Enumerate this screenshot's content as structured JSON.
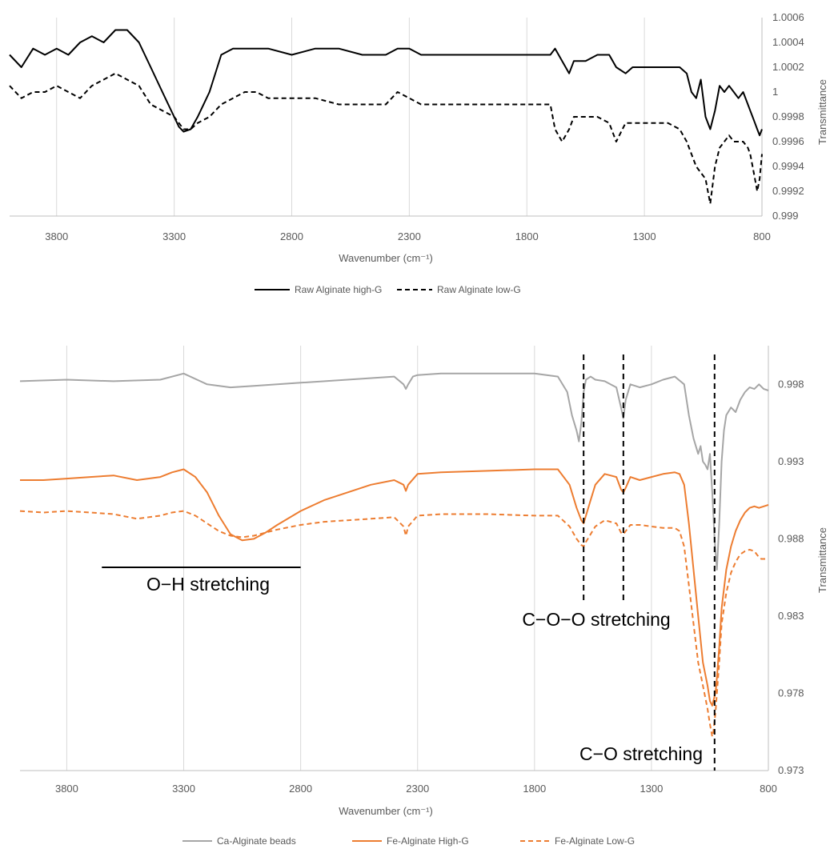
{
  "chart_data": [
    {
      "type": "line",
      "title": "",
      "xlabel": "Wavenumber (cm⁻¹)",
      "ylabel": "Transmittance",
      "xlim": [
        4000,
        800
      ],
      "ylim": [
        0.999,
        1.0006
      ],
      "x_ticks": [
        "3800",
        "3300",
        "2800",
        "2300",
        "1800",
        "1300",
        "800"
      ],
      "y_ticks": [
        "0.999",
        "0.9992",
        "0.9994",
        "0.9996",
        "0.9998",
        "1",
        "1.0002",
        "1.0004",
        "1.0006"
      ],
      "grid": "vertical",
      "legend": "bottom",
      "series": [
        {
          "name": "Raw Alginate high-G",
          "color": "#000000",
          "dash": "solid",
          "x": [
            4000,
            3950,
            3900,
            3850,
            3800,
            3750,
            3700,
            3650,
            3600,
            3550,
            3500,
            3450,
            3400,
            3350,
            3300,
            3280,
            3260,
            3230,
            3200,
            3150,
            3100,
            3050,
            3000,
            2900,
            2800,
            2700,
            2600,
            2500,
            2450,
            2400,
            2350,
            2300,
            2250,
            2200,
            2100,
            2000,
            1900,
            1800,
            1750,
            1700,
            1680,
            1650,
            1620,
            1600,
            1550,
            1500,
            1450,
            1420,
            1380,
            1350,
            1300,
            1250,
            1200,
            1150,
            1120,
            1100,
            1080,
            1060,
            1040,
            1020,
            1000,
            980,
            960,
            940,
            920,
            900,
            880,
            860,
            850,
            840,
            830,
            820,
            810,
            800
          ],
          "values": [
            1.0003,
            1.0002,
            1.00035,
            1.0003,
            1.00035,
            1.0003,
            1.0004,
            1.00045,
            1.0004,
            1.0005,
            1.0005,
            1.0004,
            1.0002,
            1.0,
            0.9998,
            0.99972,
            0.99968,
            0.9997,
            0.9998,
            1.0,
            1.0003,
            1.00035,
            1.00035,
            1.00035,
            1.0003,
            1.00035,
            1.00035,
            1.0003,
            1.0003,
            1.0003,
            1.00035,
            1.00035,
            1.0003,
            1.0003,
            1.0003,
            1.0003,
            1.0003,
            1.0003,
            1.0003,
            1.0003,
            1.00035,
            1.00025,
            1.00015,
            1.00025,
            1.00025,
            1.0003,
            1.0003,
            1.0002,
            1.00015,
            1.0002,
            1.0002,
            1.0002,
            1.0002,
            1.0002,
            1.00015,
            1.0,
            0.99995,
            1.0001,
            0.9998,
            0.9997,
            0.99985,
            1.00005,
            1.0,
            1.00005,
            1.0,
            0.99995,
            1.0,
            0.9999,
            0.99985,
            0.9998,
            0.99975,
            0.9997,
            0.99965,
            0.9997
          ]
        },
        {
          "name": "Raw Alginate low-G",
          "color": "#000000",
          "dash": "dashed",
          "x": [
            4000,
            3950,
            3900,
            3850,
            3800,
            3750,
            3700,
            3650,
            3600,
            3550,
            3500,
            3450,
            3400,
            3350,
            3300,
            3280,
            3260,
            3230,
            3200,
            3150,
            3100,
            3050,
            3000,
            2950,
            2900,
            2800,
            2700,
            2600,
            2500,
            2400,
            2350,
            2300,
            2250,
            2200,
            2100,
            2000,
            1900,
            1800,
            1700,
            1680,
            1650,
            1620,
            1600,
            1550,
            1500,
            1450,
            1420,
            1380,
            1350,
            1300,
            1250,
            1200,
            1150,
            1120,
            1100,
            1080,
            1060,
            1040,
            1030,
            1020,
            1000,
            980,
            960,
            940,
            920,
            900,
            880,
            860,
            850,
            840,
            830,
            820,
            810,
            800
          ],
          "values": [
            1.00005,
            0.99995,
            1.0,
            1.0,
            1.00005,
            1.0,
            0.99995,
            1.00005,
            1.0001,
            1.00015,
            1.0001,
            1.00005,
            0.9999,
            0.99985,
            0.9998,
            0.99975,
            0.9997,
            0.9997,
            0.99975,
            0.9998,
            0.9999,
            0.99995,
            1.0,
            1.0,
            0.99995,
            0.99995,
            0.99995,
            0.9999,
            0.9999,
            0.9999,
            1.0,
            0.99995,
            0.9999,
            0.9999,
            0.9999,
            0.9999,
            0.9999,
            0.9999,
            0.9999,
            0.9997,
            0.9996,
            0.9997,
            0.9998,
            0.9998,
            0.9998,
            0.99975,
            0.9996,
            0.99975,
            0.99975,
            0.99975,
            0.99975,
            0.99975,
            0.9997,
            0.9996,
            0.9995,
            0.9994,
            0.99935,
            0.9993,
            0.9992,
            0.9991,
            0.9994,
            0.99955,
            0.9996,
            0.99965,
            0.9996,
            0.9996,
            0.9996,
            0.99955,
            0.9995,
            0.9994,
            0.9993,
            0.9992,
            0.9993,
            0.9995
          ]
        }
      ]
    },
    {
      "type": "line",
      "title": "",
      "xlabel": "Wavenumber (cm⁻¹)",
      "ylabel": "Transmittance",
      "xlim": [
        4000,
        800
      ],
      "ylim": [
        0.973,
        1.0005
      ],
      "x_ticks": [
        "3800",
        "3300",
        "2800",
        "2300",
        "1800",
        "1300",
        "800"
      ],
      "y_ticks": [
        "0.973",
        "0.978",
        "0.983",
        "0.988",
        "0.993",
        "0.998"
      ],
      "grid": "vertical",
      "legend": "bottom",
      "annotations": [
        "O−H stretching",
        "C−O−O stretching",
        "C−O stretching"
      ],
      "reference_lines_x": [
        1590,
        1420,
        1030
      ],
      "oh_span_x": [
        3650,
        2800
      ],
      "series": [
        {
          "name": "Ca-Alginate beads",
          "color": "#a6a6a6",
          "dash": "solid",
          "x": [
            4000,
            3800,
            3600,
            3400,
            3300,
            3200,
            3100,
            3000,
            2900,
            2800,
            2600,
            2400,
            2360,
            2350,
            2340,
            2320,
            2300,
            2200,
            2000,
            1800,
            1700,
            1660,
            1640,
            1620,
            1610,
            1600,
            1590,
            1580,
            1560,
            1540,
            1500,
            1450,
            1430,
            1420,
            1410,
            1390,
            1350,
            1300,
            1250,
            1200,
            1160,
            1140,
            1120,
            1100,
            1090,
            1080,
            1070,
            1060,
            1050,
            1040,
            1030,
            1020,
            1010,
            1000,
            990,
            980,
            960,
            940,
            920,
            900,
            880,
            860,
            840,
            820,
            800
          ],
          "values": [
            0.9982,
            0.9983,
            0.9982,
            0.9983,
            0.9987,
            0.998,
            0.9978,
            0.9979,
            0.998,
            0.9981,
            0.9983,
            0.9985,
            0.998,
            0.9977,
            0.998,
            0.9985,
            0.9986,
            0.9987,
            0.9987,
            0.9987,
            0.9985,
            0.9975,
            0.996,
            0.995,
            0.9943,
            0.9955,
            0.9975,
            0.9983,
            0.9985,
            0.9983,
            0.9982,
            0.9978,
            0.9965,
            0.9958,
            0.997,
            0.998,
            0.9978,
            0.998,
            0.9983,
            0.9985,
            0.998,
            0.996,
            0.9945,
            0.9935,
            0.994,
            0.993,
            0.9928,
            0.9925,
            0.9935,
            0.991,
            0.988,
            0.986,
            0.989,
            0.993,
            0.995,
            0.996,
            0.9965,
            0.9962,
            0.997,
            0.9975,
            0.9978,
            0.9977,
            0.998,
            0.9977,
            0.9976
          ]
        },
        {
          "name": "Fe-Alginate High-G",
          "color": "#ed7d31",
          "dash": "solid",
          "x": [
            4000,
            3900,
            3800,
            3700,
            3600,
            3500,
            3400,
            3350,
            3300,
            3250,
            3200,
            3150,
            3100,
            3050,
            3000,
            2950,
            2900,
            2800,
            2700,
            2600,
            2500,
            2400,
            2360,
            2350,
            2340,
            2300,
            2200,
            2000,
            1800,
            1700,
            1650,
            1620,
            1600,
            1590,
            1580,
            1560,
            1540,
            1500,
            1450,
            1430,
            1420,
            1410,
            1390,
            1350,
            1300,
            1250,
            1200,
            1180,
            1160,
            1140,
            1120,
            1100,
            1080,
            1060,
            1050,
            1040,
            1035,
            1030,
            1025,
            1020,
            1010,
            1000,
            980,
            960,
            940,
            920,
            900,
            880,
            860,
            840,
            820,
            800
          ],
          "values": [
            0.9918,
            0.9918,
            0.9919,
            0.992,
            0.9921,
            0.9918,
            0.992,
            0.9923,
            0.9925,
            0.992,
            0.991,
            0.9895,
            0.9883,
            0.9879,
            0.988,
            0.9884,
            0.9889,
            0.9898,
            0.9905,
            0.991,
            0.9915,
            0.9918,
            0.9915,
            0.9911,
            0.9915,
            0.9922,
            0.9923,
            0.9924,
            0.9925,
            0.9925,
            0.9915,
            0.99,
            0.9892,
            0.989,
            0.9895,
            0.9905,
            0.9915,
            0.9922,
            0.992,
            0.9912,
            0.991,
            0.9913,
            0.992,
            0.9918,
            0.992,
            0.9922,
            0.9923,
            0.9922,
            0.9915,
            0.989,
            0.986,
            0.983,
            0.98,
            0.9785,
            0.9775,
            0.9772,
            0.9775,
            0.9778,
            0.9782,
            0.979,
            0.981,
            0.9835,
            0.986,
            0.9875,
            0.9885,
            0.9892,
            0.9897,
            0.99,
            0.9901,
            0.99,
            0.9901,
            0.9902
          ]
        },
        {
          "name": "Fe-Alginate Low-G",
          "color": "#ed7d31",
          "dash": "dashed",
          "x": [
            4000,
            3900,
            3800,
            3700,
            3600,
            3500,
            3400,
            3350,
            3300,
            3250,
            3200,
            3150,
            3100,
            3050,
            3000,
            2950,
            2900,
            2800,
            2700,
            2600,
            2500,
            2400,
            2360,
            2350,
            2340,
            2300,
            2200,
            2000,
            1800,
            1700,
            1650,
            1620,
            1600,
            1590,
            1580,
            1560,
            1540,
            1500,
            1450,
            1430,
            1420,
            1410,
            1390,
            1350,
            1300,
            1250,
            1200,
            1180,
            1160,
            1140,
            1120,
            1100,
            1080,
            1060,
            1050,
            1040,
            1035,
            1030,
            1025,
            1020,
            1010,
            1000,
            980,
            960,
            940,
            920,
            900,
            880,
            860,
            850,
            840,
            830,
            820,
            810,
            800
          ],
          "values": [
            0.9898,
            0.9897,
            0.9898,
            0.9897,
            0.9896,
            0.9893,
            0.9895,
            0.9897,
            0.9898,
            0.9895,
            0.989,
            0.9885,
            0.9882,
            0.9881,
            0.9882,
            0.9884,
            0.9886,
            0.9889,
            0.9891,
            0.9892,
            0.9893,
            0.9894,
            0.9888,
            0.9882,
            0.9888,
            0.9895,
            0.9896,
            0.9896,
            0.9895,
            0.9895,
            0.9888,
            0.988,
            0.9876,
            0.9875,
            0.9878,
            0.9883,
            0.9888,
            0.9892,
            0.989,
            0.9884,
            0.9883,
            0.9885,
            0.9889,
            0.9889,
            0.9888,
            0.9887,
            0.9887,
            0.9885,
            0.9875,
            0.985,
            0.9825,
            0.98,
            0.9785,
            0.977,
            0.976,
            0.9752,
            0.9755,
            0.9762,
            0.977,
            0.978,
            0.98,
            0.9825,
            0.9845,
            0.9858,
            0.9865,
            0.987,
            0.9872,
            0.9873,
            0.9872,
            0.987,
            0.9868,
            0.9867,
            0.9867,
            0.9867,
            0.9867
          ]
        }
      ]
    }
  ]
}
